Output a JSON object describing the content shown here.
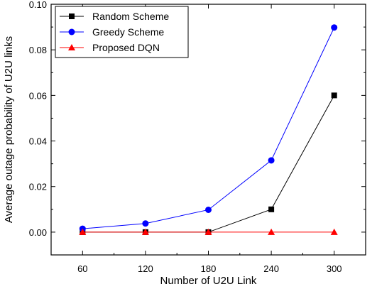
{
  "chart_data": {
    "type": "line",
    "title": "",
    "xlabel": "Number of  U2U Link",
    "ylabel": "Average outage probability of U2U links",
    "x": [
      60,
      120,
      180,
      240,
      300
    ],
    "x_tick_labels": [
      "60",
      "120",
      "180",
      "240",
      "300"
    ],
    "xlim": [
      30,
      330
    ],
    "ylim": [
      -0.01,
      0.1
    ],
    "y_ticks": [
      0.0,
      0.02,
      0.04,
      0.06,
      0.08,
      0.1
    ],
    "y_tick_labels": [
      "0.00",
      "0.02",
      "0.04",
      "0.06",
      "0.08",
      "0.10"
    ],
    "grid": false,
    "legend_position": "top-left",
    "series": [
      {
        "name": "Random Scheme",
        "color": "#000000",
        "marker": "square",
        "values": [
          0.0,
          0.0,
          0.0,
          0.01,
          0.06
        ]
      },
      {
        "name": "Greedy Scheme",
        "color": "#0000ff",
        "marker": "circle",
        "values": [
          0.0015,
          0.0038,
          0.0098,
          0.0315,
          0.0898
        ]
      },
      {
        "name": "Proposed DQN",
        "color": "#ff0000",
        "marker": "triangle",
        "values": [
          0.0,
          0.0,
          0.0,
          0.0,
          0.0
        ]
      }
    ]
  }
}
